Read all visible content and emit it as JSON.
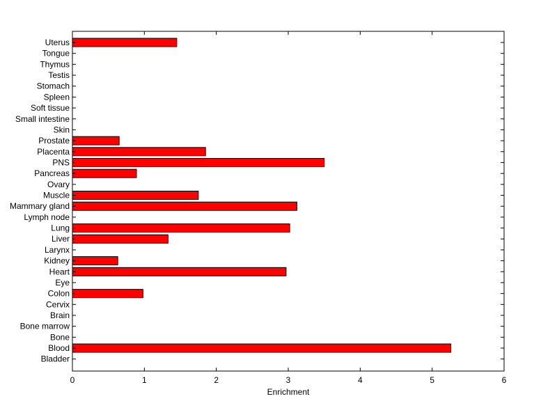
{
  "chart_data": {
    "type": "bar",
    "orientation": "horizontal",
    "title": "",
    "xlabel": "Enrichment",
    "ylabel": "",
    "xlim": [
      0,
      6
    ],
    "xticks": [
      "0",
      "1",
      "2",
      "3",
      "4",
      "5",
      "6"
    ],
    "grid": false,
    "bar_color": "#ff0000",
    "bar_edge_color": "#000000",
    "categories": [
      "Uterus",
      "Tongue",
      "Thymus",
      "Testis",
      "Stomach",
      "Spleen",
      "Soft tissue",
      "Small intestine",
      "Skin",
      "Prostate",
      "Placenta",
      "PNS",
      "Pancreas",
      "Ovary",
      "Muscle",
      "Mammary gland",
      "Lymph node",
      "Lung",
      "Liver",
      "Larynx",
      "Kidney",
      "Heart",
      "Eye",
      "Colon",
      "Cervix",
      "Brain",
      "Bone marrow",
      "Bone",
      "Blood",
      "Bladder"
    ],
    "values": [
      1.45,
      0,
      0,
      0,
      0,
      0,
      0,
      0,
      0,
      0.65,
      1.85,
      3.5,
      0.89,
      0,
      1.75,
      3.12,
      0,
      3.02,
      1.33,
      0,
      0.63,
      2.97,
      0,
      0.98,
      0,
      0,
      0,
      0,
      5.26,
      0
    ]
  }
}
